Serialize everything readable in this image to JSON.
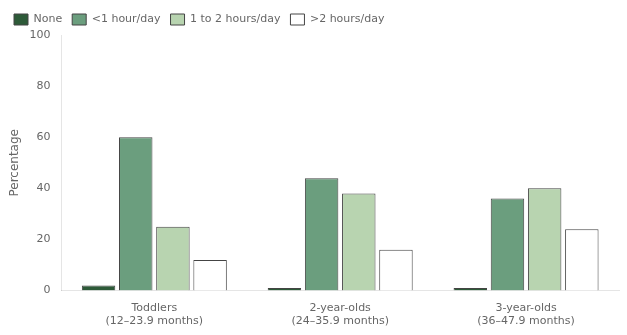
{
  "chart_data": {
    "type": "bar",
    "categories": [
      "Toddlers\n(12–23.9 months)",
      "2-year-olds\n(24–35.9 months)",
      "3-year-olds\n(36–47.9 months)"
    ],
    "series": [
      {
        "name": "None",
        "color": "#2d5a38",
        "values": [
          2,
          1,
          1
        ]
      },
      {
        "name": "<1 hour/day",
        "color": "#6b9e7e",
        "values": [
          60,
          44,
          36
        ]
      },
      {
        "name": "1 to 2 hours/day",
        "color": "#b8d4b0",
        "values": [
          25,
          38,
          40
        ]
      },
      {
        "name": ">2 hours/day",
        "color": "#ffffff",
        "values": [
          12,
          16,
          24
        ]
      }
    ],
    "ylabel": "Percentage",
    "ylim": [
      0,
      100
    ],
    "yticks": [
      0,
      20,
      40,
      60,
      80,
      100
    ],
    "grid": false,
    "legend": "upper left"
  }
}
